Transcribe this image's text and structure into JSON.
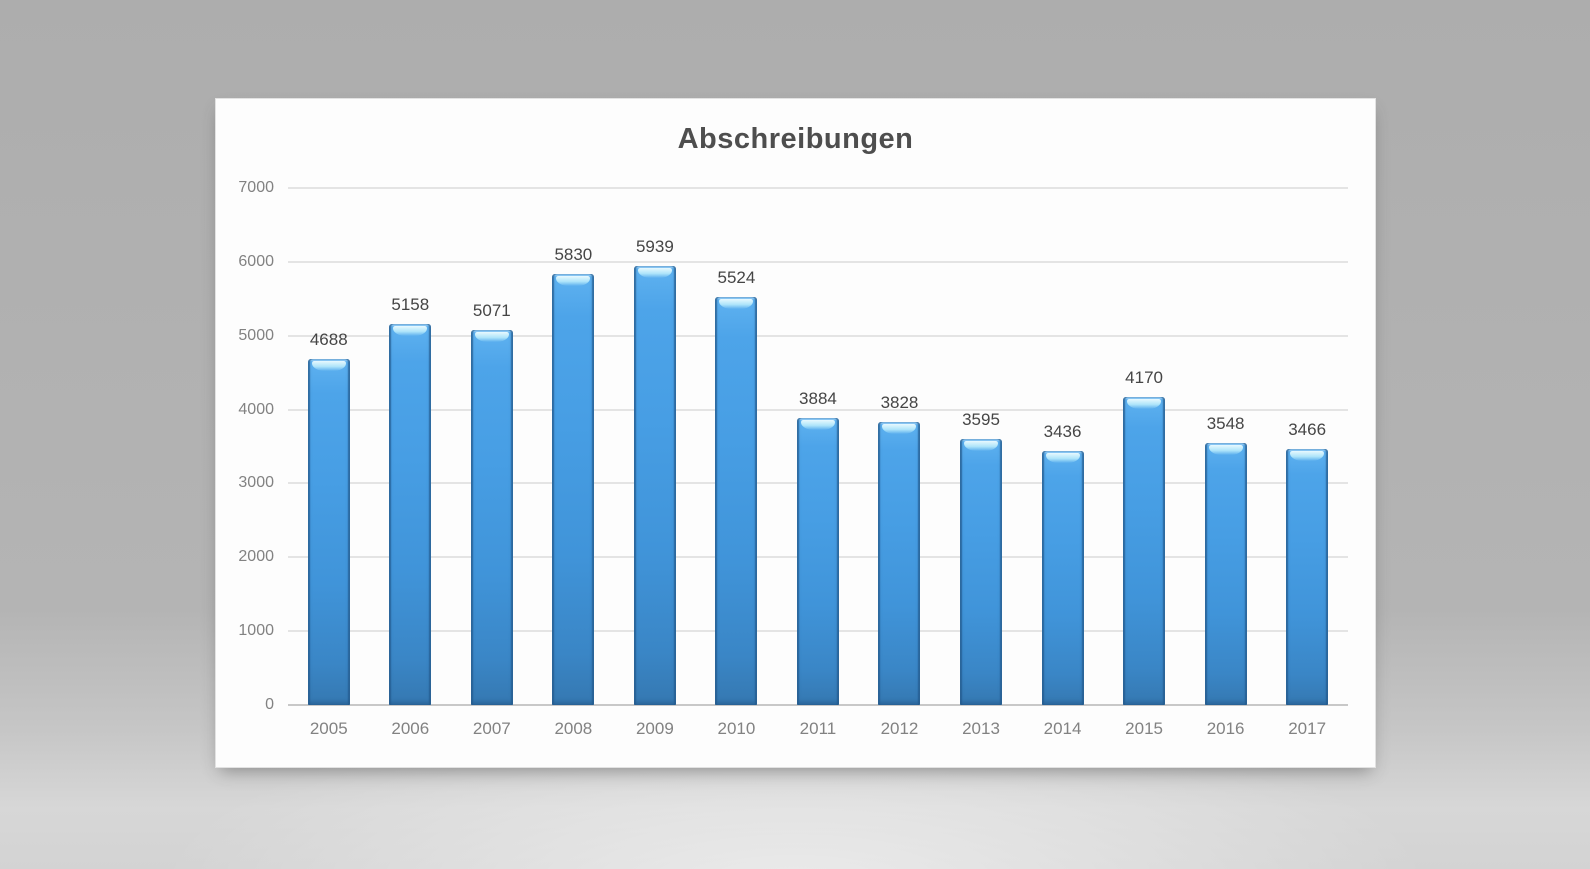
{
  "chart_data": {
    "type": "bar",
    "title": "Abschreibungen",
    "categories": [
      "2005",
      "2006",
      "2007",
      "2008",
      "2009",
      "2010",
      "2011",
      "2012",
      "2013",
      "2014",
      "2015",
      "2016",
      "2017"
    ],
    "values": [
      4688,
      5158,
      5071,
      5830,
      5939,
      5524,
      3884,
      3828,
      3595,
      3436,
      4170,
      3548,
      3466
    ],
    "xlabel": "",
    "ylabel": "",
    "ylim": [
      0,
      7000
    ],
    "yticks": [
      0,
      1000,
      2000,
      3000,
      4000,
      5000,
      6000,
      7000
    ],
    "grid": true,
    "legend_position": "none",
    "data_labels": true,
    "colors": {
      "bar_fill": "#459BE0",
      "bar_fill_light": "#5FB2F0",
      "bar_fill_dark": "#3578B1",
      "bar_edge": "#2B6699",
      "bar_gloss": "#D8F6FE",
      "gridline": "#E4E4E4",
      "axis_line": "#C8C8C8",
      "title_text": "#4E4E4E",
      "axis_text": "#828282",
      "label_text": "#454545",
      "panel_bg": "#FDFDFD",
      "background": "#B2B2B2"
    }
  }
}
